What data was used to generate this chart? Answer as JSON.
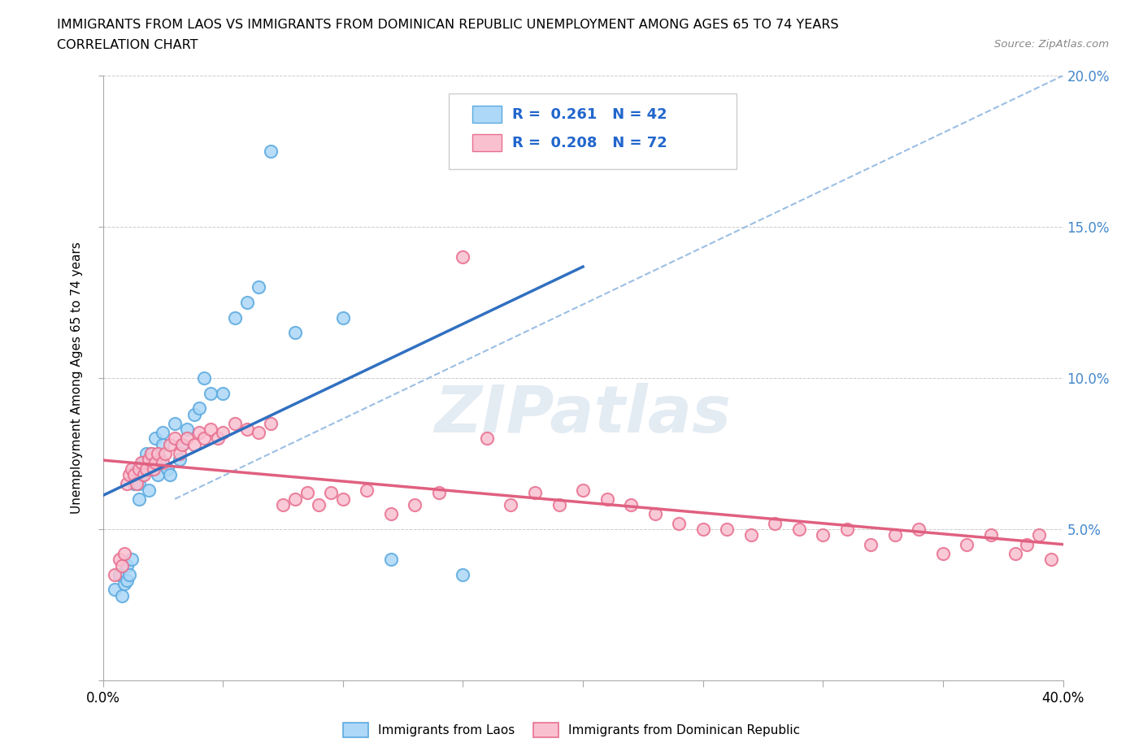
{
  "title_line1": "IMMIGRANTS FROM LAOS VS IMMIGRANTS FROM DOMINICAN REPUBLIC UNEMPLOYMENT AMONG AGES 65 TO 74 YEARS",
  "title_line2": "CORRELATION CHART",
  "source": "Source: ZipAtlas.com",
  "ylabel": "Unemployment Among Ages 65 to 74 years",
  "legend_label1": "Immigrants from Laos",
  "legend_label2": "Immigrants from Dominican Republic",
  "R1": 0.261,
  "N1": 42,
  "R2": 0.208,
  "N2": 72,
  "color_laos_fill": "#ADD8F7",
  "color_laos_edge": "#5BAAE0",
  "color_dr_fill": "#F9C0D0",
  "color_dr_edge": "#E87090",
  "color_laos_line": "#3070C0",
  "color_dr_line": "#E06080",
  "color_diag": "#90B8E0",
  "xlim": [
    0.0,
    0.4
  ],
  "ylim": [
    0.0,
    0.2
  ],
  "xticks": [
    0.0,
    0.05,
    0.1,
    0.15,
    0.2,
    0.25,
    0.3,
    0.35,
    0.4
  ],
  "yticks": [
    0.0,
    0.05,
    0.1,
    0.15,
    0.2
  ],
  "laos_x": [
    0.005,
    0.007,
    0.008,
    0.009,
    0.01,
    0.01,
    0.011,
    0.012,
    0.013,
    0.014,
    0.015,
    0.015,
    0.016,
    0.017,
    0.018,
    0.019,
    0.02,
    0.02,
    0.022,
    0.023,
    0.024,
    0.025,
    0.025,
    0.027,
    0.028,
    0.03,
    0.032,
    0.033,
    0.035,
    0.038,
    0.04,
    0.042,
    0.045,
    0.05,
    0.055,
    0.06,
    0.065,
    0.07,
    0.08,
    0.1,
    0.12,
    0.15
  ],
  "laos_y": [
    0.03,
    0.035,
    0.028,
    0.032,
    0.033,
    0.038,
    0.035,
    0.04,
    0.065,
    0.07,
    0.06,
    0.065,
    0.068,
    0.072,
    0.075,
    0.063,
    0.07,
    0.075,
    0.08,
    0.068,
    0.073,
    0.078,
    0.082,
    0.07,
    0.068,
    0.085,
    0.073,
    0.078,
    0.083,
    0.088,
    0.09,
    0.1,
    0.095,
    0.095,
    0.12,
    0.125,
    0.13,
    0.175,
    0.115,
    0.12,
    0.04,
    0.035
  ],
  "dr_x": [
    0.005,
    0.007,
    0.008,
    0.009,
    0.01,
    0.011,
    0.012,
    0.013,
    0.014,
    0.015,
    0.016,
    0.017,
    0.018,
    0.019,
    0.02,
    0.021,
    0.022,
    0.023,
    0.025,
    0.026,
    0.028,
    0.03,
    0.032,
    0.033,
    0.035,
    0.038,
    0.04,
    0.042,
    0.045,
    0.048,
    0.05,
    0.055,
    0.06,
    0.065,
    0.07,
    0.075,
    0.08,
    0.085,
    0.09,
    0.095,
    0.1,
    0.11,
    0.12,
    0.13,
    0.14,
    0.15,
    0.16,
    0.17,
    0.18,
    0.19,
    0.2,
    0.21,
    0.22,
    0.23,
    0.24,
    0.25,
    0.26,
    0.27,
    0.28,
    0.29,
    0.3,
    0.31,
    0.32,
    0.33,
    0.34,
    0.35,
    0.36,
    0.37,
    0.38,
    0.385,
    0.39,
    0.395
  ],
  "dr_y": [
    0.035,
    0.04,
    0.038,
    0.042,
    0.065,
    0.068,
    0.07,
    0.068,
    0.065,
    0.07,
    0.072,
    0.068,
    0.07,
    0.073,
    0.075,
    0.07,
    0.072,
    0.075,
    0.072,
    0.075,
    0.078,
    0.08,
    0.075,
    0.078,
    0.08,
    0.078,
    0.082,
    0.08,
    0.083,
    0.08,
    0.082,
    0.085,
    0.083,
    0.082,
    0.085,
    0.058,
    0.06,
    0.062,
    0.058,
    0.062,
    0.06,
    0.063,
    0.055,
    0.058,
    0.062,
    0.14,
    0.08,
    0.058,
    0.062,
    0.058,
    0.063,
    0.06,
    0.058,
    0.055,
    0.052,
    0.05,
    0.05,
    0.048,
    0.052,
    0.05,
    0.048,
    0.05,
    0.045,
    0.048,
    0.05,
    0.042,
    0.045,
    0.048,
    0.042,
    0.045,
    0.048,
    0.04
  ]
}
